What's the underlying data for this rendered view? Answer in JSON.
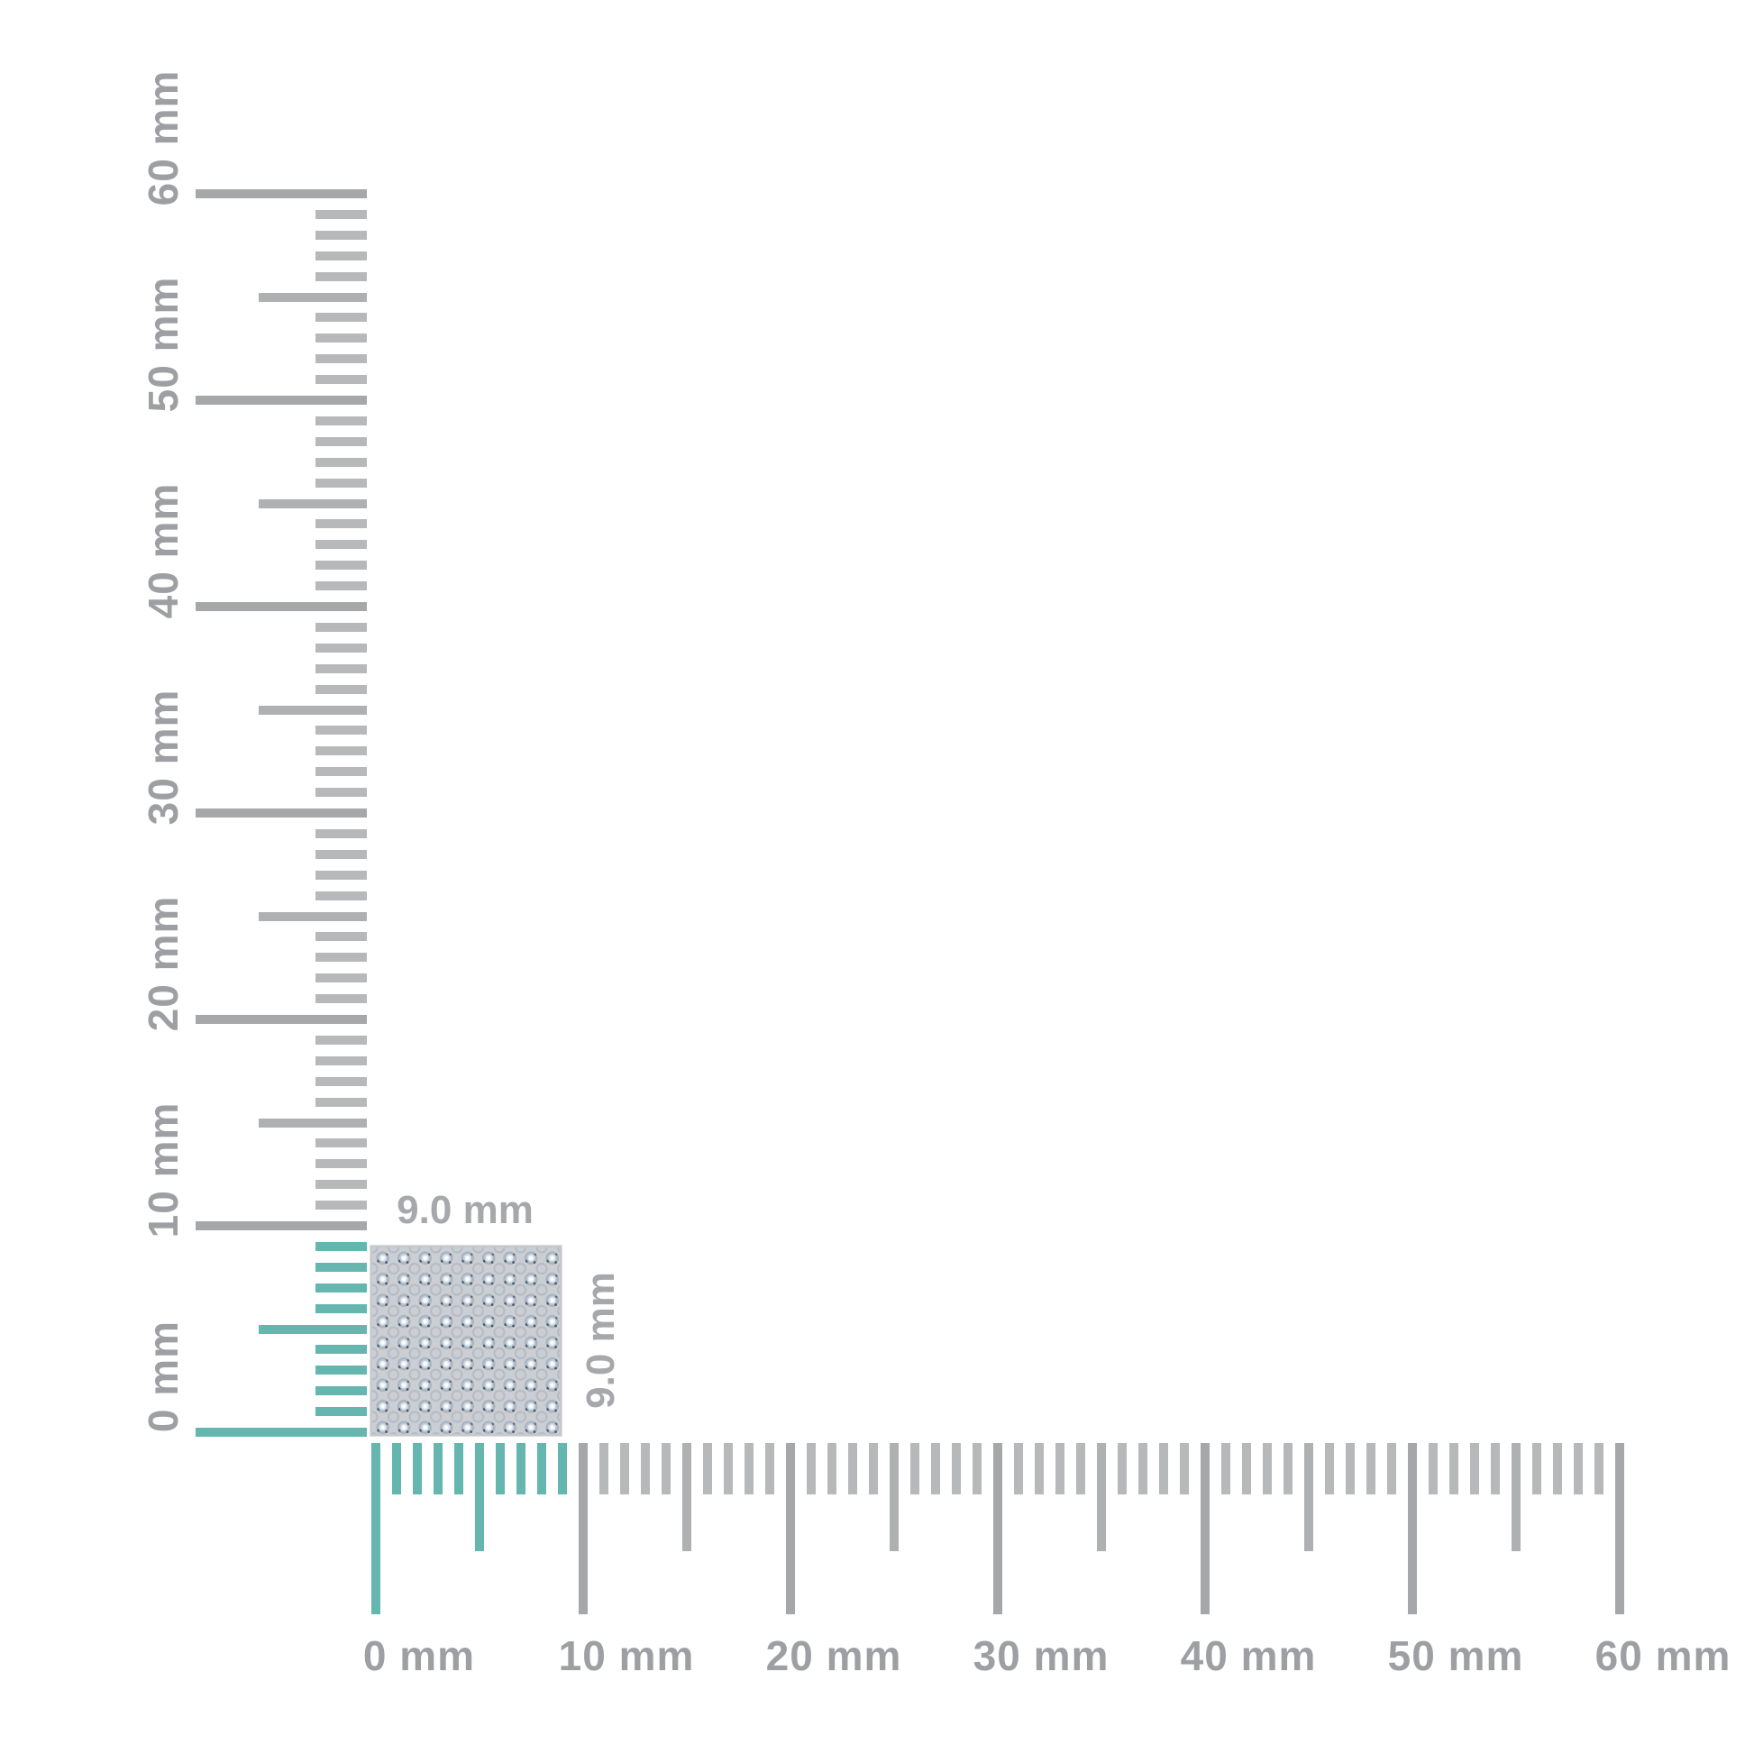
{
  "diagram": {
    "type": "ruler-measurement",
    "unit": "mm"
  },
  "colors": {
    "background": "#ffffff",
    "tick_major_gray": "#a5a7a9",
    "tick_half_gray": "#aeb0b2",
    "tick_minor_gray": "#b6b8ba",
    "tick_teal": "#64b6ae",
    "ruler_label_gray": "#9d9fa2",
    "dimension_label_gray": "#a6a8ab",
    "specimen_base": "#cbced3",
    "specimen_border": "#c6c8cc"
  },
  "vertical_ruler": {
    "unit": "mm",
    "min_mm": 0,
    "max_mm": 60,
    "tick_step_mm": 1,
    "half_step_mm": 5,
    "major_step_mm": 10,
    "highlight_from_mm": 0,
    "highlight_to_mm": 9,
    "labels": [
      "0 mm",
      "10 mm",
      "20 mm",
      "30 mm",
      "40 mm",
      "50 mm",
      "60 mm"
    ]
  },
  "horizontal_ruler": {
    "unit": "mm",
    "min_mm": 0,
    "max_mm": 60,
    "tick_step_mm": 1,
    "half_step_mm": 5,
    "major_step_mm": 10,
    "highlight_from_mm": 0,
    "highlight_to_mm": 9,
    "labels": [
      "0 mm",
      "10 mm",
      "20 mm",
      "30 mm",
      "40 mm",
      "50 mm",
      "60 mm"
    ]
  },
  "specimen": {
    "description": "crystal-mesh-square-swatch",
    "width_label": "9.0 mm",
    "height_label": "9.0 mm"
  }
}
